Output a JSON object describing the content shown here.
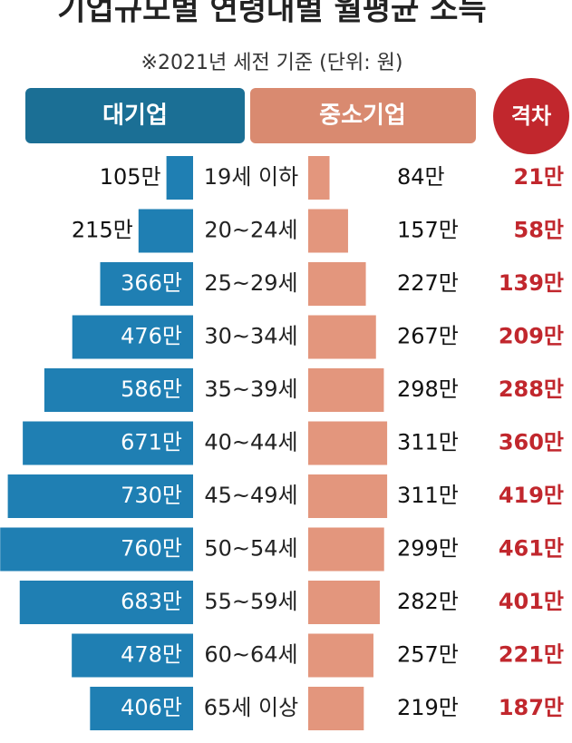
{
  "chart_data": {
    "type": "butterfly",
    "title": "기업규모별 연령대별 월평균 소득",
    "subtitle": "※2021년 세전 기준 (단위: 원)",
    "categories": [
      "19세 이하",
      "20~24세",
      "25~29세",
      "30~34세",
      "35~39세",
      "40~44세",
      "45~49세",
      "50~54세",
      "55~59세",
      "60~64세",
      "65세 이상"
    ],
    "series": [
      {
        "name": "대기업",
        "color": "#1f7fb3",
        "header_color": "#1b6f95",
        "values": [
          105,
          215,
          366,
          476,
          586,
          671,
          730,
          760,
          683,
          478,
          406
        ],
        "value_labels": [
          "105만",
          "215만",
          "366만",
          "476만",
          "586만",
          "671만",
          "730만",
          "760만",
          "683만",
          "478만",
          "406만"
        ]
      },
      {
        "name": "중소기업",
        "color": "#e3967d",
        "header_color": "#d98a70",
        "values": [
          84,
          157,
          227,
          267,
          298,
          311,
          311,
          299,
          282,
          257,
          219
        ],
        "value_labels": [
          "84만",
          "157만",
          "227만",
          "267만",
          "298만",
          "311만",
          "311만",
          "299만",
          "282만",
          "257만",
          "219만"
        ]
      }
    ],
    "gap": {
      "name": "격차",
      "color": "#c1272d",
      "values": [
        21,
        58,
        139,
        209,
        288,
        360,
        419,
        461,
        401,
        221,
        187
      ],
      "value_labels": [
        "21만",
        "58만",
        "139만",
        "209만",
        "288만",
        "360만",
        "419만",
        "461만",
        "401만",
        "221만",
        "187만"
      ]
    }
  }
}
